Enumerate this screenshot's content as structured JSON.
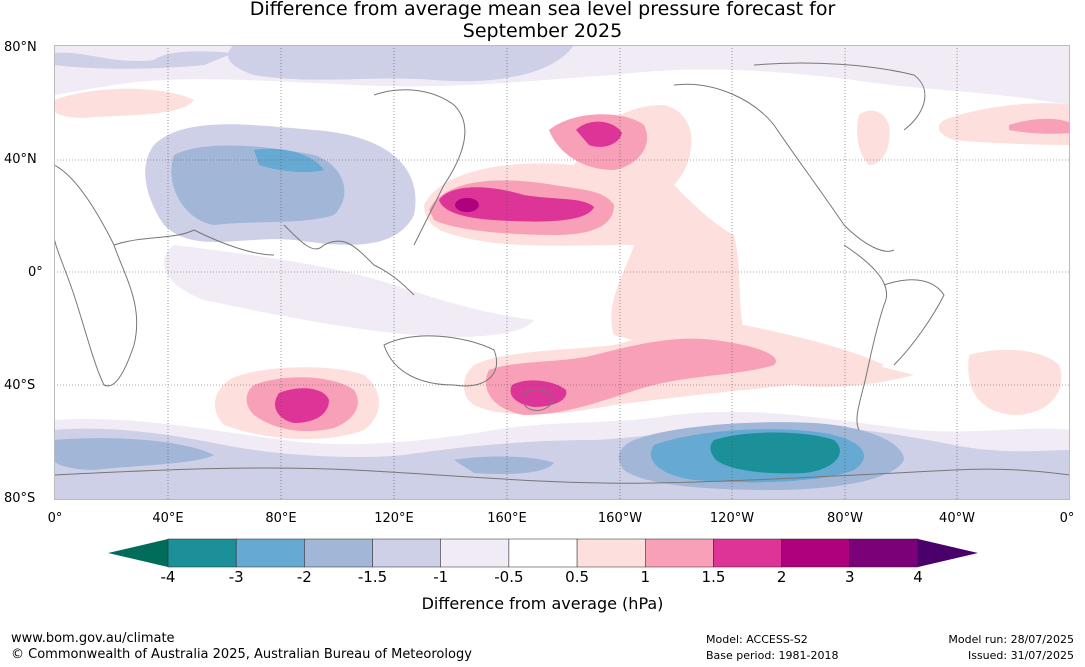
{
  "title_line1": "Difference from average mean sea level pressure forecast for",
  "title_line2": "September 2025",
  "lat_labels": [
    "80°N",
    "40°N",
    "0°",
    "40°S",
    "80°S"
  ],
  "lon_labels": [
    "0°",
    "40°E",
    "80°E",
    "120°E",
    "160°E",
    "160°W",
    "120°W",
    "80°W",
    "40°W",
    "0°"
  ],
  "colorbar": {
    "ticks": [
      "-4",
      "-3",
      "-2",
      "-1.5",
      "-1",
      "-0.5",
      "0.5",
      "1",
      "1.5",
      "2",
      "3",
      "4"
    ],
    "colors": [
      "#1b9098",
      "#66a9d2",
      "#a2b6d8",
      "#cdd0e6",
      "#f1ebf5",
      "#ffffff",
      "#fde0dd",
      "#f9a0b9",
      "#dd3497",
      "#ae017e",
      "#7a0177"
    ],
    "under_color": "#016c59",
    "over_color": "#49006a",
    "label": "Difference from average (hPa)"
  },
  "footer": {
    "website": "www.bom.gov.au/climate",
    "copyright": "© Commonwealth of Australia 2025, Australian Bureau of Meteorology",
    "model": "Model: ACCESS-S2",
    "base_period": "Base period: 1981-2018",
    "model_run": "Model run: 28/07/2025",
    "issued": "Issued: 31/07/2025"
  }
}
